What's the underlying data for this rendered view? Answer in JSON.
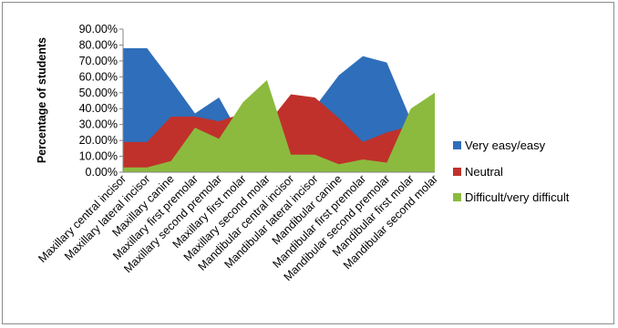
{
  "chart_data": {
    "type": "area",
    "title": "",
    "xlabel": "",
    "ylabel": "Percentage of students",
    "ylim": [
      0,
      90
    ],
    "yticks": [
      "0.00%",
      "10.00%",
      "20.00%",
      "30.00%",
      "40.00%",
      "50.00%",
      "60.00%",
      "70.00%",
      "80.00%",
      "90.00%"
    ],
    "categories": [
      "Maxillary central incisor",
      "Maxillary lateral incisor",
      "Maxillary canine",
      "Maxillary first premolar",
      "Maxillary second premolar",
      "Maxillary first molar",
      "Maxillary second molar",
      "Mandibular central incisor",
      "Mandibular lateral incisor",
      "Mandibular canine",
      "Mandibular first premolar",
      "Mandibular second premolar",
      "Mandibular first molar",
      "Mandibular second molar"
    ],
    "series": [
      {
        "name": "Very easy/easy",
        "color": "#2f6eba",
        "values": [
          78,
          78,
          58,
          37,
          47,
          20,
          12,
          40,
          41,
          61,
          73,
          69,
          33,
          8
        ]
      },
      {
        "name": "Neutral",
        "color": "#c0312b",
        "values": [
          19,
          19,
          35,
          35,
          32,
          37,
          30,
          49,
          47,
          34,
          19,
          25,
          29,
          42
        ]
      },
      {
        "name": "Difficult/very difficult",
        "color": "#8cba3e",
        "values": [
          3,
          3,
          7,
          28,
          21,
          44,
          58,
          11,
          11,
          5,
          8,
          6,
          40,
          50
        ]
      }
    ],
    "legend_position": "right",
    "grid": false
  }
}
